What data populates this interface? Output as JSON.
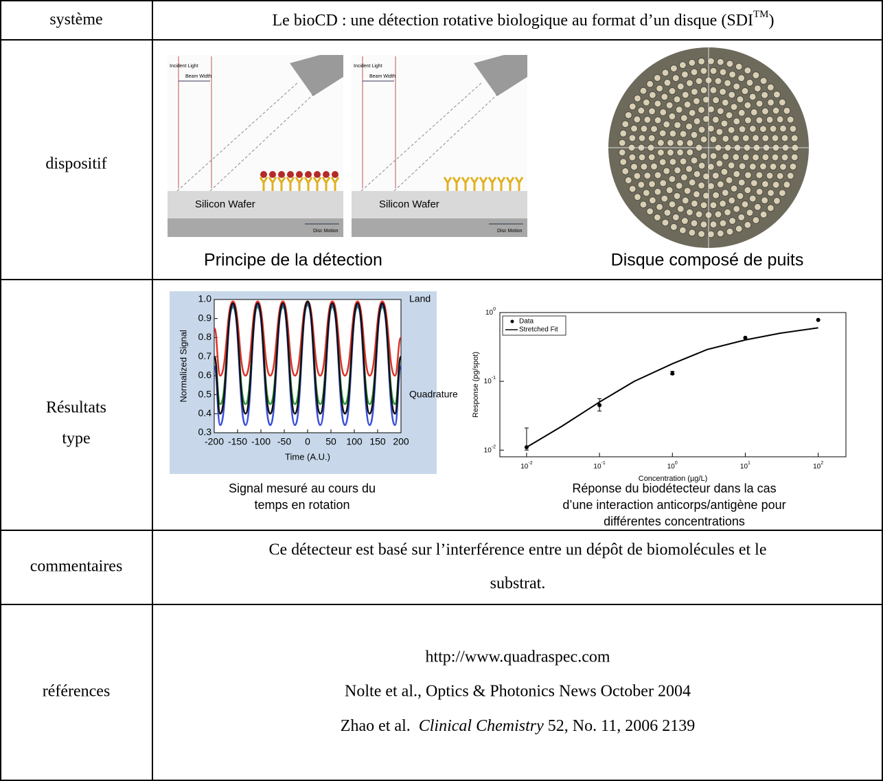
{
  "table": {
    "rows": [
      {
        "label": "système",
        "content": {
          "text": "Le bioCD : une détection rotative biologique au format d’un disque (SDI",
          "superscript": "TM",
          "text_end": ")"
        }
      },
      {
        "label": "dispositif",
        "figures": [
          {
            "caption": "Principe de la détection",
            "panel_labels": [
              "Incident Light",
              "Beam Width",
              "Silicon Wafer",
              "Disc Motion"
            ]
          },
          {
            "caption": "Disque composé de puits"
          }
        ]
      },
      {
        "label": [
          "Résultats",
          "type"
        ],
        "charts": [
          {
            "type": "line",
            "caption": [
              "Signal mesuré au cours du",
              "temps en rotation"
            ],
            "x_label": "Time (A.U.)",
            "y_label": "Normalized Signal",
            "annotations": [
              "Land",
              "Quadrature"
            ],
            "background": "#c8d8ea",
            "x": [
              -200,
              -187,
              -160,
              -133,
              -107,
              -80,
              -53,
              -27,
              0,
              27,
              53,
              80,
              107,
              133,
              160,
              187,
              200
            ],
            "series": [
              {
                "color": "#e0302a",
                "values": [
                  0.85,
                  0.6,
                  0.99,
                  0.6,
                  0.99,
                  0.6,
                  0.99,
                  0.6,
                  0.99,
                  0.6,
                  0.99,
                  0.6,
                  0.99,
                  0.6,
                  0.99,
                  0.6,
                  0.8
                ]
              },
              {
                "color": "#2a9a3a",
                "values": [
                  0.7,
                  0.45,
                  0.96,
                  0.45,
                  0.96,
                  0.45,
                  0.96,
                  0.45,
                  0.97,
                  0.45,
                  0.96,
                  0.45,
                  0.96,
                  0.45,
                  0.96,
                  0.45,
                  0.7
                ]
              },
              {
                "color": "#3a4fd8",
                "values": [
                  0.65,
                  0.34,
                  0.97,
                  0.34,
                  0.97,
                  0.34,
                  0.97,
                  0.34,
                  0.98,
                  0.34,
                  0.97,
                  0.34,
                  0.97,
                  0.34,
                  0.97,
                  0.34,
                  0.65
                ]
              },
              {
                "color": "#111111",
                "values": [
                  0.7,
                  0.4,
                  0.98,
                  0.4,
                  0.98,
                  0.4,
                  0.98,
                  0.4,
                  0.99,
                  0.4,
                  0.98,
                  0.4,
                  0.98,
                  0.4,
                  0.98,
                  0.4,
                  0.7
                ]
              }
            ],
            "xlim": [
              -200,
              200
            ],
            "xticks": [
              -200,
              -150,
              -100,
              -50,
              0,
              50,
              100,
              150,
              200
            ],
            "ylim": [
              0.3,
              1.0
            ],
            "yticks": [
              0.3,
              0.4,
              0.5,
              0.6,
              0.7,
              0.8,
              0.9,
              {
                "value": 1.0,
                "label": "1.0"
              }
            ]
          },
          {
            "type": "scatter",
            "log_scale": true,
            "caption": [
              "Réponse du biodétecteur dans la cas",
              "d’une interaction anticorps/antigène pour",
              "différentes concentrations"
            ],
            "x_label": "Concentration (µg/L)",
            "y_label": "Response (pg/spot)",
            "series": [
              {
                "name": "Data",
                "color": "#000000",
                "x": [
                  0.01,
                  0.1,
                  1,
                  10,
                  100
                ],
                "values": [
                  0.011,
                  0.045,
                  0.13,
                  0.43,
                  0.78
                ],
                "error_low": [
                  0.01,
                  0.037,
                  0.125,
                  null,
                  null
                ],
                "error_high": [
                  0.021,
                  0.056,
                  0.14,
                  null,
                  null
                ]
              },
              {
                "name": "Stretched Fit",
                "color": "#000000",
                "x": [
                  0.01,
                  0.03,
                  0.1,
                  0.3,
                  1,
                  3,
                  10,
                  30,
                  100
                ],
                "values": [
                  0.011,
                  0.022,
                  0.05,
                  0.1,
                  0.18,
                  0.29,
                  0.4,
                  0.5,
                  0.6
                ]
              }
            ],
            "xlim": [
              0.0043,
              240
            ],
            "xticks": [
              {
                "value": 0.01,
                "label": "10",
                "exponent": "-2"
              },
              {
                "value": 0.1,
                "label": "10",
                "exponent": "-1"
              },
              {
                "value": 1,
                "label": "10",
                "exponent": "0"
              },
              {
                "value": 10,
                "label": "10",
                "exponent": "1"
              },
              {
                "value": 100,
                "label": "10",
                "exponent": "2"
              }
            ],
            "ylim": [
              0.008,
              1
            ],
            "yticks": [
              {
                "value": 0.01,
                "label": "10",
                "exponent": "-2"
              },
              {
                "value": 0.1,
                "label": "10",
                "exponent": "-1"
              },
              {
                "value": 1,
                "label": "10",
                "exponent": "0"
              }
            ]
          }
        ]
      },
      {
        "label": "commentaires",
        "lines": [
          "Ce détecteur est basé sur l’interférence entre un dépôt de biomolécules et le",
          "substrat."
        ]
      },
      {
        "label": "références",
        "lines": [
          "http://www.quadraspec.com",
          "Nolte et al., Optics & Photonics News  October 2004",
          {
            "text": "Zhao et al.  ",
            "italic": "Clinical Chemistry",
            "text_end": " 52, No. 11, 2006 2139"
          }
        ]
      }
    ]
  }
}
